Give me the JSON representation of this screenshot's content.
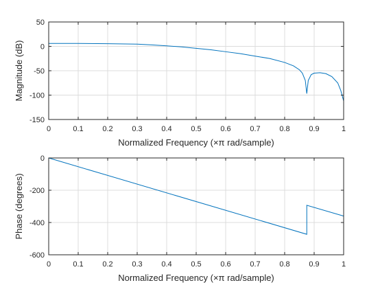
{
  "chart_data": [
    {
      "type": "line",
      "xlabel": "Normalized Frequency  (×π rad/sample)",
      "ylabel": "Magnitude (dB)",
      "xlim": [
        0,
        1
      ],
      "ylim": [
        -150,
        50
      ],
      "xticks": [
        "0",
        "0.1",
        "0.2",
        "0.3",
        "0.4",
        "0.5",
        "0.6",
        "0.7",
        "0.8",
        "0.9",
        "1"
      ],
      "yticks": [
        "50",
        "0",
        "-50",
        "-100",
        "-150"
      ],
      "grid": true,
      "series": [
        {
          "color": "#0072BD",
          "x": [
            0,
            0.1,
            0.2,
            0.3,
            0.35,
            0.4,
            0.45,
            0.5,
            0.55,
            0.6,
            0.65,
            0.7,
            0.75,
            0.8,
            0.83,
            0.85,
            0.86,
            0.87,
            0.875,
            0.88,
            0.89,
            0.9,
            0.92,
            0.94,
            0.96,
            0.98,
            0.99,
            1.0
          ],
          "y": [
            6,
            6,
            5.5,
            4.5,
            3,
            1,
            -1,
            -4,
            -7,
            -11,
            -15,
            -20,
            -25,
            -33,
            -40,
            -48,
            -55,
            -70,
            -97,
            -70,
            -58,
            -55,
            -54,
            -56,
            -62,
            -75,
            -90,
            -112
          ]
        }
      ]
    },
    {
      "type": "line",
      "xlabel": "Normalized Frequency  (×π rad/sample)",
      "ylabel": "Phase (degrees)",
      "xlim": [
        0,
        1
      ],
      "ylim": [
        -600,
        0
      ],
      "xticks": [
        "0",
        "0.1",
        "0.2",
        "0.3",
        "0.4",
        "0.5",
        "0.6",
        "0.7",
        "0.8",
        "0.9",
        "1"
      ],
      "yticks": [
        "0",
        "-200",
        "-400",
        "-600"
      ],
      "grid": true,
      "series": [
        {
          "color": "#0072BD",
          "x": [
            0,
            0.875,
            0.875,
            1.0
          ],
          "y": [
            0,
            -473,
            -293,
            -360
          ]
        }
      ]
    }
  ]
}
